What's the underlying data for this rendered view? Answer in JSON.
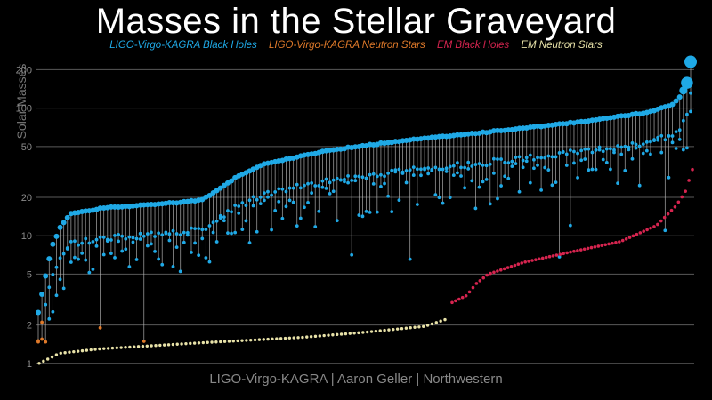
{
  "chart_data": {
    "type": "scatter",
    "title": "Masses in the Stellar Graveyard",
    "ylabel": "Solar Masses",
    "xlabel": "",
    "yscale": "log",
    "ylim": [
      0.95,
      260
    ],
    "yticks": [
      "1",
      "2",
      "5",
      "10",
      "20",
      "50",
      "100",
      "200"
    ],
    "grid": true,
    "legend": "top",
    "series": [
      {
        "name": "LIGO-Virgo-KAGRA Black Holes",
        "color": "#1fa9e6",
        "description_points": "GW event masses (remnant, primary, secondary), ~1.5–230"
      },
      {
        "name": "LIGO-Virgo-KAGRA Neutron Stars",
        "color": "#e07a2a",
        "description_points": "~1.2–2.0"
      },
      {
        "name": "EM Black Holes",
        "color": "#d6244f",
        "description_points": "~3–33"
      },
      {
        "name": "EM Neutron Stars",
        "color": "#e8e2a8",
        "description_points": "~1.0–2.2"
      }
    ],
    "em_neutron_stars": [
      1.0,
      1.05,
      1.1,
      1.15,
      1.2,
      1.25,
      1.3,
      1.35,
      1.4,
      1.45,
      1.5,
      1.55,
      1.6,
      1.7,
      1.8,
      1.9,
      2.0,
      2.1,
      2.2
    ],
    "em_black_holes": [
      3.0,
      3.2,
      3.5,
      4.5,
      5.0,
      5.5,
      6.0,
      6.5,
      7.0,
      7.5,
      8.0,
      9.0,
      10.0,
      11.0,
      12.0,
      14.0,
      17.0,
      21.0,
      24.0,
      33.0
    ],
    "lvk_remnant_mass_range": [
      2.5,
      230
    ],
    "lvk_primary_mass_range": [
      1.5,
      140
    ],
    "lvk_secondary_mass_range": [
      1.2,
      95
    ],
    "lvk_neutron_star_masses": [
      1.2,
      1.4,
      1.5,
      1.6,
      1.9,
      2.0
    ]
  },
  "footer": "LIGO-Virgo-KAGRA | Aaron Geller | Northwestern"
}
